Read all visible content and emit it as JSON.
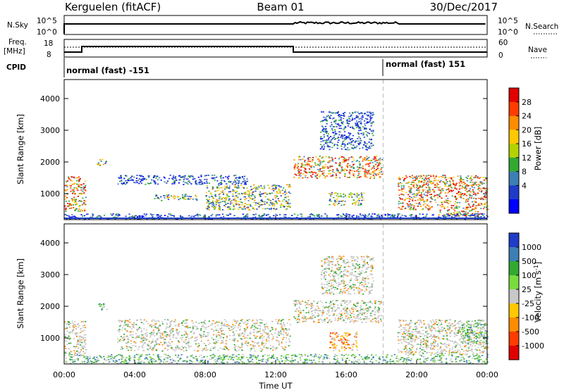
{
  "header": {
    "station": "Kerguelen (fitACF)",
    "beam": "Beam 01",
    "date": "30/Dec/2017"
  },
  "status_panels": {
    "nsky_label": "N.Sky",
    "nsky_ticks": [
      "10^5",
      "10^0"
    ],
    "nsearch_label": "N.Search",
    "nsearch_ticks": [
      "10^5",
      "10^0"
    ],
    "freq_label": "Freq.",
    "freq_unit": "[MHz]",
    "freq_ticks": [
      "18",
      "8"
    ],
    "nave_label": "Nave",
    "nave_ticks": [
      "60",
      "0"
    ],
    "cpid_label": "CPID",
    "cpid_segments": [
      "normal (fast) -151",
      "normal (fast) 151"
    ]
  },
  "chart_data": [
    {
      "type": "heatmap",
      "title": "",
      "xlabel": "Time UT",
      "ylabel": "Slant Range [km]",
      "xticks": [
        "00:00",
        "04:00",
        "08:00",
        "12:00",
        "16:00",
        "20:00",
        "00:00"
      ],
      "x_hours": [
        0,
        4,
        8,
        12,
        16,
        20,
        24
      ],
      "yticks": [
        1000,
        2000,
        3000,
        4000
      ],
      "ylim": [
        180,
        4600
      ],
      "xlim": [
        0,
        24
      ],
      "colorbar_label": "Power [dB]",
      "colorbar_ticks": [
        "28",
        "24",
        "20",
        "16",
        "12",
        "8",
        "4"
      ],
      "colorbar_colors": [
        "#e10000",
        "#ff3c00",
        "#ff8c00",
        "#ffc800",
        "#b4d200",
        "#32aa32",
        "#3c7fb4",
        "#1e3cc8",
        "#0000ff"
      ],
      "mode_change_hour": 13.0,
      "dashed_marker_hour": 18.1,
      "regions": [
        {
          "t0": 0.0,
          "t1": 1.2,
          "r0": 450,
          "r1": 1550,
          "level": "high"
        },
        {
          "t0": 1.8,
          "t1": 2.4,
          "r0": 1900,
          "r1": 2100,
          "level": "mid"
        },
        {
          "t0": 3.0,
          "t1": 10.5,
          "r0": 1300,
          "r1": 1600,
          "level": "low"
        },
        {
          "t0": 5.0,
          "t1": 7.5,
          "r0": 800,
          "r1": 1000,
          "level": "mid"
        },
        {
          "t0": 8.0,
          "t1": 12.8,
          "r0": 500,
          "r1": 1300,
          "level": "mid"
        },
        {
          "t0": 13.0,
          "t1": 18.0,
          "r0": 1500,
          "r1": 2200,
          "level": "high"
        },
        {
          "t0": 14.5,
          "t1": 17.5,
          "r0": 2400,
          "r1": 3600,
          "level": "low"
        },
        {
          "t0": 15.0,
          "t1": 17.0,
          "r0": 650,
          "r1": 1050,
          "level": "mid"
        },
        {
          "t0": 18.9,
          "t1": 24.0,
          "r0": 500,
          "r1": 1600,
          "level": "high"
        },
        {
          "t0": 21.2,
          "t1": 23.6,
          "r0": 250,
          "r1": 500,
          "level": "high"
        },
        {
          "t0": 0.0,
          "t1": 24.0,
          "r0": 200,
          "r1": 380,
          "level": "low"
        }
      ]
    },
    {
      "type": "heatmap",
      "title": "",
      "xlabel": "Time UT",
      "ylabel": "Slant Range [km]",
      "xticks": [
        "00:00",
        "04:00",
        "08:00",
        "12:00",
        "16:00",
        "20:00",
        "00:00"
      ],
      "x_hours": [
        0,
        4,
        8,
        12,
        16,
        20,
        24
      ],
      "yticks": [
        1000,
        2000,
        3000,
        4000
      ],
      "ylim": [
        180,
        4600
      ],
      "xlim": [
        0,
        24
      ],
      "colorbar_label": "Velocity [m s",
      "colorbar_label_sup": "-1",
      "colorbar_label_close": "]",
      "colorbar_ticks": [
        "1000",
        "500",
        "100",
        "25",
        "-25",
        "-100",
        "-500",
        "-1000"
      ],
      "colorbar_colors": [
        "#1e3cc8",
        "#3c7fb4",
        "#32aa32",
        "#78dc3c",
        "#c8c8c8",
        "#ffc800",
        "#ff8c00",
        "#ff3c00",
        "#e10000"
      ],
      "mode_change_hour": 13.0,
      "dashed_marker_hour": 18.1,
      "regions": [
        {
          "t0": 0.0,
          "t1": 1.2,
          "r0": 450,
          "r1": 1550,
          "level": "gray"
        },
        {
          "t0": 1.8,
          "t1": 2.4,
          "r0": 1900,
          "r1": 2100,
          "level": "green"
        },
        {
          "t0": 3.0,
          "t1": 12.8,
          "r0": 600,
          "r1": 1600,
          "level": "gray"
        },
        {
          "t0": 13.0,
          "t1": 18.0,
          "r0": 1500,
          "r1": 2200,
          "level": "gray"
        },
        {
          "t0": 14.5,
          "t1": 17.5,
          "r0": 2400,
          "r1": 3600,
          "level": "gray"
        },
        {
          "t0": 15.0,
          "t1": 16.6,
          "r0": 600,
          "r1": 1200,
          "level": "orange"
        },
        {
          "t0": 18.9,
          "t1": 24.0,
          "r0": 500,
          "r1": 1600,
          "level": "gray"
        },
        {
          "t0": 22.5,
          "t1": 24.0,
          "r0": 800,
          "r1": 1500,
          "level": "green"
        },
        {
          "t0": 0.0,
          "t1": 24.0,
          "r0": 200,
          "r1": 500,
          "level": "green"
        }
      ]
    }
  ]
}
